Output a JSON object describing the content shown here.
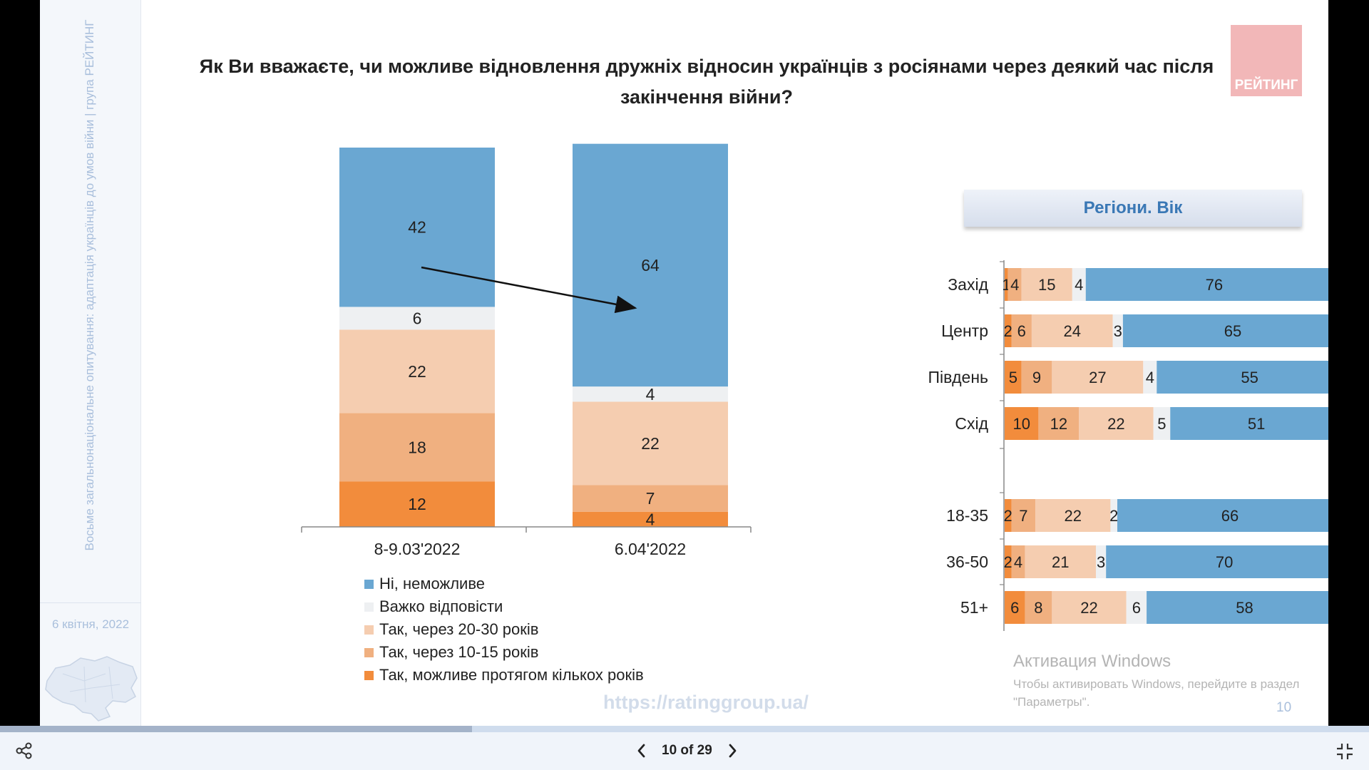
{
  "sidebar": {
    "vertical_text": "Восьме загальнонаціональне опитування: адаптація українців до умов війни | група РЕЙТИНГ",
    "date": "6 квітня, 2022"
  },
  "title": "Як Ви вважаєте, чи можливе відновлення дружніх відносин українців з росіянами через деякий час після закінчення війни?",
  "logo_text": "РЕЙТИНГ",
  "legend": [
    {
      "label": "Ні, неможливе",
      "color": "#6aa7d2"
    },
    {
      "label": "Важко відповісти",
      "color": "#eef0f2"
    },
    {
      "label": "Так, через 20-30 років",
      "color": "#f5cdb0"
    },
    {
      "label": "Так, через 10-15 років",
      "color": "#f0b080"
    },
    {
      "label": "Так, можливе протягом кількох років",
      "color": "#f28c3c"
    }
  ],
  "region_header": "Регіони. Вік",
  "url": "https://ratinggroup.ua/",
  "windows_watermark": {
    "title": "Активация Windows",
    "subtitle": "Чтобы активировать Windows, перейдите в раздел \"Параметры\"."
  },
  "page_number": "10",
  "navigation": {
    "text": "10 of 29",
    "current": 10,
    "total": 29
  },
  "chart_data": [
    {
      "type": "bar",
      "stacked": true,
      "orientation": "vertical",
      "categories": [
        "8-9.03'2022",
        "6.04'2022"
      ],
      "series": [
        {
          "name": "Так, можливе протягом кількох років",
          "color": "#f28c3c",
          "values": [
            12,
            4
          ]
        },
        {
          "name": "Так, через 10-15 років",
          "color": "#f0b080",
          "values": [
            18,
            7
          ]
        },
        {
          "name": "Так, через 20-30 років",
          "color": "#f5cdb0",
          "values": [
            22,
            22
          ]
        },
        {
          "name": "Важко відповісти",
          "color": "#eef0f2",
          "values": [
            6,
            4
          ]
        },
        {
          "name": "Ні, неможливе",
          "color": "#6aa7d2",
          "values": [
            42,
            64
          ]
        }
      ],
      "ylim": [
        0,
        100
      ],
      "annotation": "arrow from 42 to 64"
    },
    {
      "type": "bar",
      "stacked": true,
      "orientation": "horizontal",
      "title": "Регіони. Вік",
      "groups": [
        {
          "rows": [
            {
              "label": "Захід",
              "values": [
                1,
                4,
                15,
                4,
                76
              ]
            },
            {
              "label": "Центр",
              "values": [
                2,
                6,
                24,
                3,
                65
              ]
            },
            {
              "label": "Південь",
              "values": [
                5,
                9,
                27,
                4,
                55
              ]
            },
            {
              "label": "Схід",
              "values": [
                10,
                12,
                22,
                5,
                51
              ]
            }
          ]
        },
        {
          "rows": [
            {
              "label": "18-35",
              "values": [
                2,
                7,
                22,
                2,
                66
              ]
            },
            {
              "label": "36-50",
              "values": [
                2,
                4,
                21,
                3,
                70
              ]
            },
            {
              "label": "51+",
              "values": [
                6,
                8,
                22,
                6,
                58
              ]
            }
          ]
        }
      ],
      "series_order": [
        "Так, можливе протягом кількох років",
        "Так, через 10-15 років",
        "Так, через 20-30 років",
        "Важко відповісти",
        "Ні, неможливе"
      ],
      "xlim": [
        0,
        100
      ]
    }
  ]
}
